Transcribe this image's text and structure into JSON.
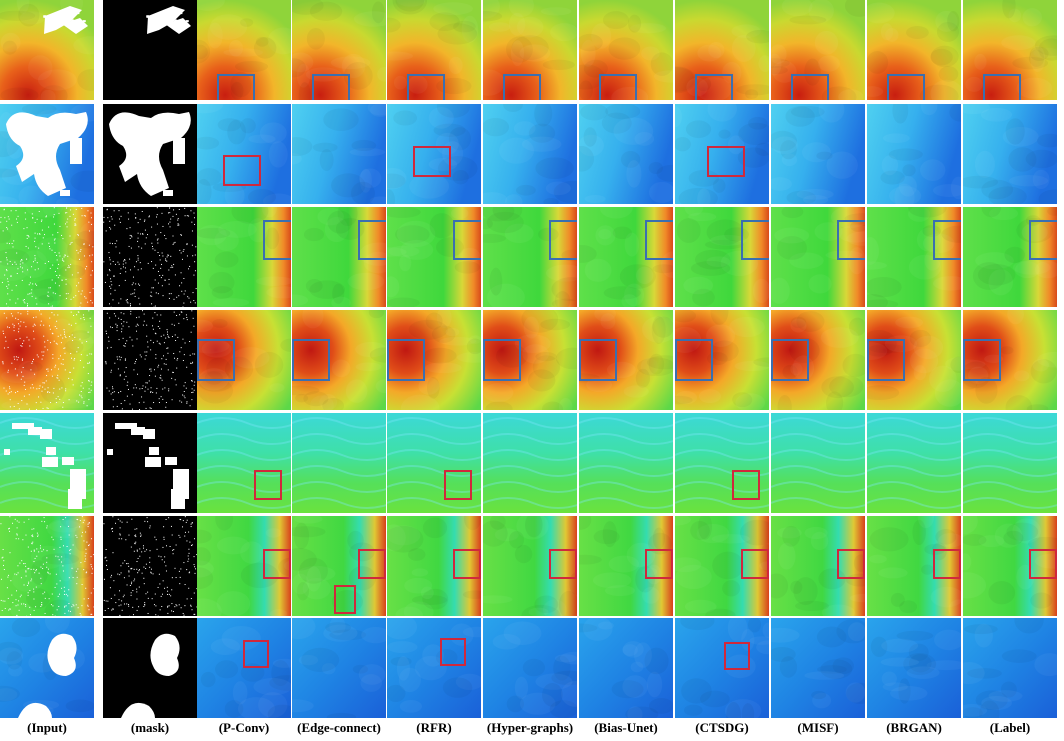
{
  "columns": [
    {
      "label": "(Input)"
    },
    {
      "label": "(mask)"
    },
    {
      "label": "(P-Conv)"
    },
    {
      "label": "(Edge-connect)"
    },
    {
      "label": "(RFR)"
    },
    {
      "label": "(Hyper-graphs)"
    },
    {
      "label": "(Bias-Unet)"
    },
    {
      "label": "(CTSDG)"
    },
    {
      "label": "(MISF)"
    },
    {
      "label": "(BRGAN)"
    },
    {
      "label": "(Label)"
    }
  ],
  "rows": [
    {
      "scene": "warm-red-yellow",
      "mask": "streaks",
      "box_color": "#3a6fb0"
    },
    {
      "scene": "blue-cyan",
      "mask": "large-blobs",
      "box_color": "#d0283c"
    },
    {
      "scene": "green-edge",
      "mask": "sparse-noise",
      "box_color": "#3a6fb0"
    },
    {
      "scene": "red-green",
      "mask": "sparse-noise",
      "box_color": "#3a6fb0"
    },
    {
      "scene": "green-cyan-swirl",
      "mask": "rect-blocks",
      "box_color": "#d0283c"
    },
    {
      "scene": "green-edge-cyan",
      "mask": "sparse-noise",
      "box_color": "#d0283c"
    },
    {
      "scene": "blue-deep",
      "mask": "round-blobs",
      "box_color": "#d0283c"
    }
  ],
  "colors": {
    "blue_box": "#3a6fb0",
    "red_box": "#d0283c",
    "mask_background": "#000000",
    "mask_foreground": "#ffffff"
  }
}
